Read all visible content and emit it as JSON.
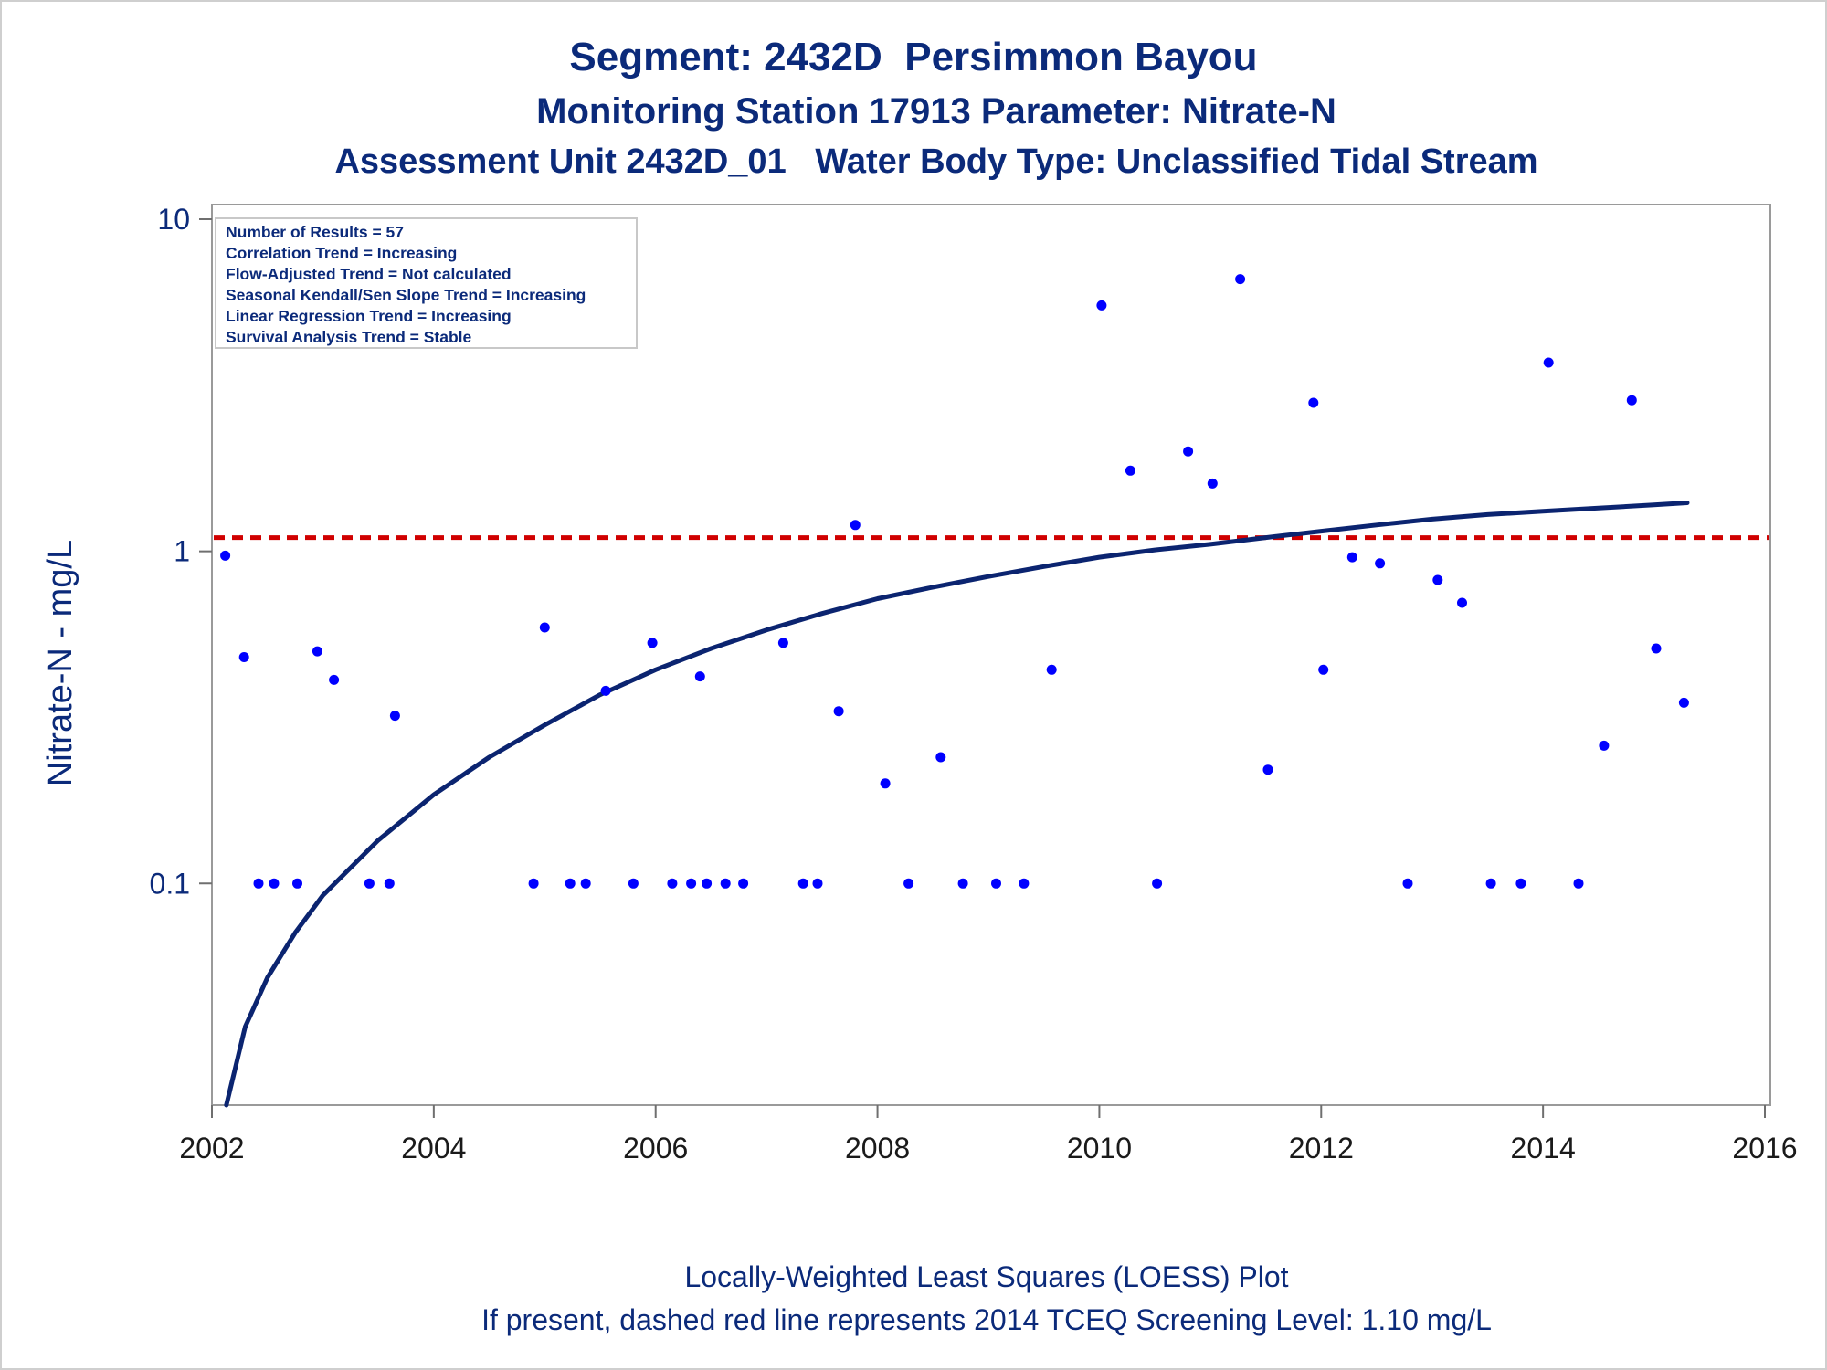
{
  "titles": {
    "line1": "Segment: 2432D  Persimmon Bayou",
    "line2": "Monitoring Station 17913 Parameter: Nitrate-N",
    "line3": "Assessment Unit 2432D_01   Water Body Type: Unclassified Tidal Stream"
  },
  "footnotes": {
    "line1": "Locally-Weighted Least Squares (LOESS) Plot",
    "line2": "If present, dashed red line represents 2014 TCEQ Screening Level: 1.10 mg/L"
  },
  "chart_data": {
    "type": "scatter",
    "ylabel": "Nitrate-N - mg/L",
    "xlabel": "",
    "y_scale": "log",
    "xlim": [
      2002.0,
      2016.0
    ],
    "ylim": [
      0.0215,
      10
    ],
    "x_ticks": [
      "2002",
      "2004",
      "2006",
      "2008",
      "2010",
      "2012",
      "2014",
      "2016"
    ],
    "y_ticks": [
      "0.1",
      "1",
      "10"
    ],
    "stats_box": [
      "Number of Results = 57",
      "Correlation Trend = Increasing",
      "Flow-Adjusted Trend = Not calculated",
      "Seasonal Kendall/Sen Slope Trend = Increasing",
      "Linear Regression Trend = Increasing",
      "Survival Analysis Trend = Stable"
    ],
    "screening_level": {
      "value": 1.1,
      "color": "#d00000",
      "style": "dashed"
    },
    "colors": {
      "points": "#0000ff",
      "loess": "#0b2470",
      "text": "#0b2a7a"
    },
    "series": [
      {
        "name": "",
        "points": [
          [
            2002.12,
            0.97
          ],
          [
            2002.29,
            0.48
          ],
          [
            2002.42,
            0.1
          ],
          [
            2002.56,
            0.1
          ],
          [
            2002.77,
            0.1
          ],
          [
            2002.95,
            0.5
          ],
          [
            2003.1,
            0.41
          ],
          [
            2003.42,
            0.1
          ],
          [
            2003.6,
            0.1
          ],
          [
            2003.65,
            0.32
          ],
          [
            2004.9,
            0.1
          ],
          [
            2005.0,
            0.59
          ],
          [
            2005.23,
            0.1
          ],
          [
            2005.37,
            0.1
          ],
          [
            2005.55,
            0.38
          ],
          [
            2005.8,
            0.1
          ],
          [
            2005.97,
            0.53
          ],
          [
            2006.15,
            0.1
          ],
          [
            2006.32,
            0.1
          ],
          [
            2006.4,
            0.42
          ],
          [
            2006.46,
            0.1
          ],
          [
            2006.63,
            0.1
          ],
          [
            2006.79,
            0.1
          ],
          [
            2007.15,
            0.53
          ],
          [
            2007.33,
            0.1
          ],
          [
            2007.46,
            0.1
          ],
          [
            2007.65,
            0.33
          ],
          [
            2007.8,
            1.2
          ],
          [
            2008.07,
            0.2
          ],
          [
            2008.28,
            0.1
          ],
          [
            2008.57,
            0.24
          ],
          [
            2008.77,
            0.1
          ],
          [
            2009.07,
            0.1
          ],
          [
            2009.32,
            0.1
          ],
          [
            2009.57,
            0.44
          ],
          [
            2010.02,
            5.5
          ],
          [
            2010.28,
            1.75
          ],
          [
            2010.52,
            0.1
          ],
          [
            2010.8,
            2.0
          ],
          [
            2011.02,
            1.6
          ],
          [
            2011.27,
            6.6
          ],
          [
            2011.52,
            0.22
          ],
          [
            2011.93,
            2.8
          ],
          [
            2012.02,
            0.44
          ],
          [
            2012.28,
            0.96
          ],
          [
            2012.53,
            0.92
          ],
          [
            2012.78,
            0.1
          ],
          [
            2013.05,
            0.82
          ],
          [
            2013.27,
            0.7
          ],
          [
            2013.53,
            0.1
          ],
          [
            2013.8,
            0.1
          ],
          [
            2014.05,
            3.7
          ],
          [
            2014.32,
            0.1
          ],
          [
            2014.55,
            0.26
          ],
          [
            2014.8,
            2.85
          ],
          [
            2015.02,
            0.51
          ],
          [
            2015.27,
            0.35
          ]
        ]
      }
    ],
    "loess_curve": [
      [
        2002.13,
        0.0215
      ],
      [
        2002.3,
        0.037
      ],
      [
        2002.5,
        0.052
      ],
      [
        2002.75,
        0.071
      ],
      [
        2003.0,
        0.092
      ],
      [
        2003.5,
        0.135
      ],
      [
        2004.0,
        0.185
      ],
      [
        2004.5,
        0.24
      ],
      [
        2005.0,
        0.3
      ],
      [
        2005.5,
        0.37
      ],
      [
        2006.0,
        0.44
      ],
      [
        2006.5,
        0.51
      ],
      [
        2007.0,
        0.58
      ],
      [
        2007.5,
        0.65
      ],
      [
        2008.0,
        0.72
      ],
      [
        2008.5,
        0.78
      ],
      [
        2009.0,
        0.84
      ],
      [
        2009.5,
        0.9
      ],
      [
        2010.0,
        0.96
      ],
      [
        2010.5,
        1.01
      ],
      [
        2011.0,
        1.05
      ],
      [
        2011.5,
        1.1
      ],
      [
        2012.0,
        1.15
      ],
      [
        2012.5,
        1.2
      ],
      [
        2013.0,
        1.25
      ],
      [
        2013.5,
        1.29
      ],
      [
        2014.0,
        1.32
      ],
      [
        2014.5,
        1.35
      ],
      [
        2015.0,
        1.38
      ],
      [
        2015.3,
        1.4
      ]
    ]
  }
}
